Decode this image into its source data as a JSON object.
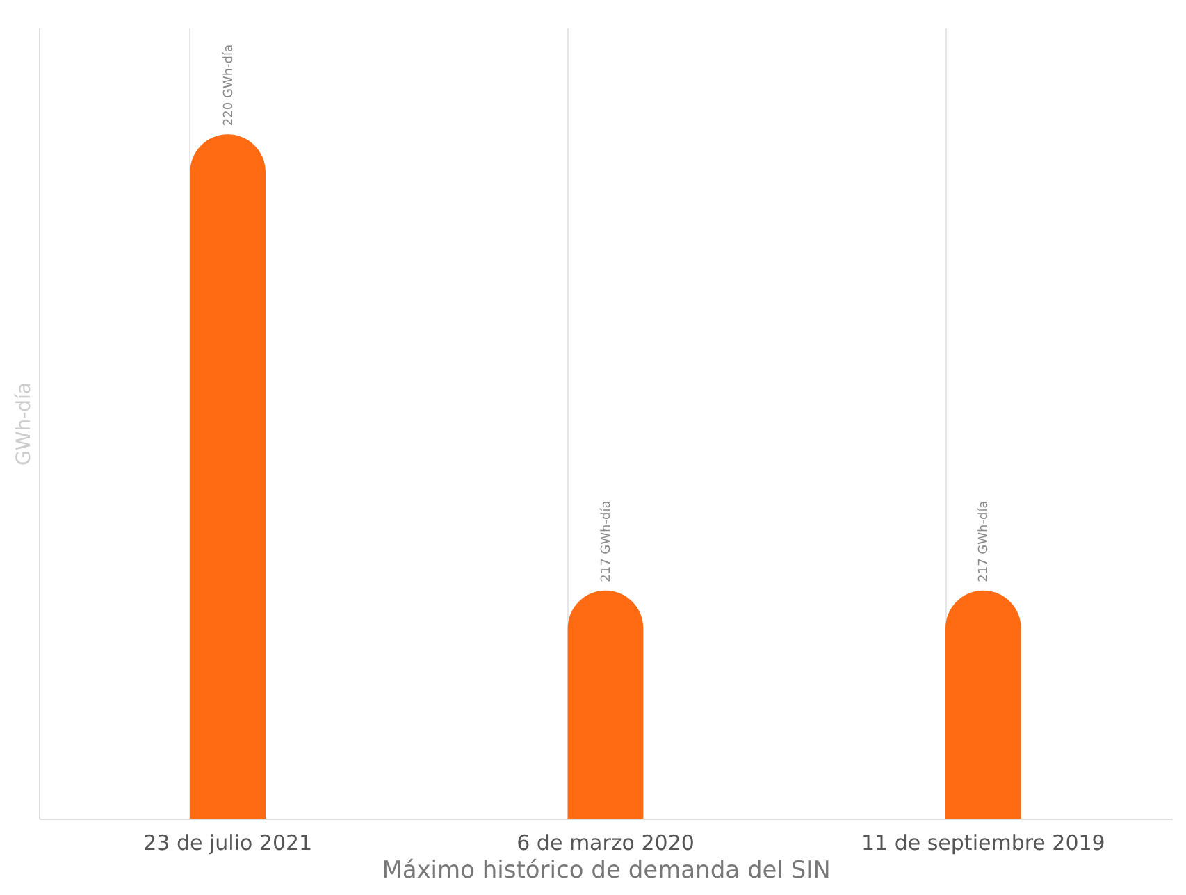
{
  "chart_data": {
    "type": "bar",
    "categories": [
      "23 de julio 2021",
      "6 de marzo 2020",
      "11 de septiembre 2019"
    ],
    "values": [
      220,
      217,
      217
    ],
    "value_labels": [
      "220 GWh-día",
      "217 GWh-día",
      "217 GWh-día"
    ],
    "color": "#ff6b12",
    "ylim": [
      215.5,
      220.7
    ],
    "xlabel": "Máximo histórico de demanda del SIN",
    "ylabel": "GWh-día",
    "grid": "x",
    "tick_labels": "x"
  }
}
